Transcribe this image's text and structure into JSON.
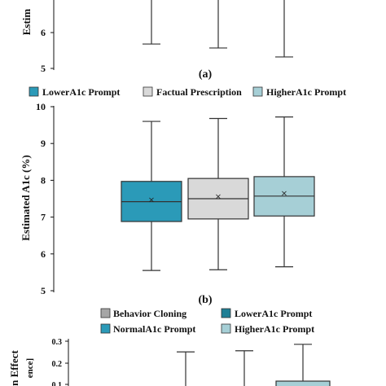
{
  "chart_data": [
    {
      "type": "box",
      "panel_label": "(a)",
      "ylabel": "Estim",
      "yticks": [
        "5",
        "6"
      ],
      "series": [
        {
          "whisker_low": 5.68
        },
        {
          "whisker_low": 5.57
        },
        {
          "whisker_low": 5.32
        }
      ]
    },
    {
      "type": "box",
      "panel_label": "(b)",
      "ylabel": "Estimated A1c (%)",
      "ylim": [
        5,
        10
      ],
      "yticks": [
        "5",
        "6",
        "7",
        "8",
        "9",
        "10"
      ],
      "legend_position": "top",
      "series": [
        {
          "name": "LowerA1c Prompt",
          "color": "#2b9ab8",
          "whisker_low": 5.55,
          "q1": 6.88,
          "median": 7.42,
          "mean": 7.48,
          "q3": 7.97,
          "whisker_high": 9.6
        },
        {
          "name": "Factual Prescription",
          "color": "#d9d9d9",
          "whisker_low": 5.57,
          "q1": 6.95,
          "median": 7.5,
          "mean": 7.57,
          "q3": 8.05,
          "whisker_high": 9.68
        },
        {
          "name": "HigherA1c Prompt",
          "color": "#a6cfd6",
          "whisker_low": 5.65,
          "q1": 7.03,
          "median": 7.57,
          "mean": 7.65,
          "q3": 8.1,
          "whisker_high": 9.72
        }
      ]
    },
    {
      "type": "box",
      "ylabel": "n Effect",
      "ylabel_2": "ence]",
      "yticks": [
        "0.1",
        "0.2",
        "0.3"
      ],
      "legend_position": "top",
      "series": [
        {
          "name": "Behavior Cloning",
          "color": "#a6a6a6"
        },
        {
          "name": "LowerA1c Prompt",
          "color": "#1f7f95",
          "whisker_high": 0.25
        },
        {
          "name": "NormalA1c Prompt",
          "color": "#2b9ab8",
          "whisker_high": 0.255
        },
        {
          "name": "HigherA1c Prompt",
          "color": "#a6cfd6",
          "whisker_high": 0.285,
          "q3": 0.115
        }
      ]
    }
  ]
}
